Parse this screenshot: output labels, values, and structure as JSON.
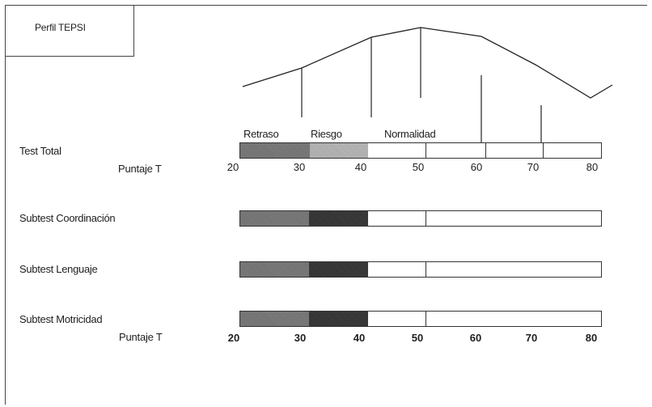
{
  "title": "Perfil TEPSI",
  "bands": {
    "retraso": "Retraso",
    "riesgo": "Riesgo",
    "normalidad": "Normalidad"
  },
  "rows": {
    "test_total": "Test Total",
    "coordinacion": "Subtest Coordinación",
    "lenguaje": "Subtest Lenguaje",
    "motricidad": "Subtest Motricidad"
  },
  "puntaje_top": "Puntaje T",
  "puntaje_bottom": "Puntaje T",
  "ticks_top": [
    "20",
    "30",
    "40",
    "50",
    "60",
    "70",
    "80"
  ],
  "ticks_bottom": [
    "20",
    "30",
    "40",
    "50",
    "60",
    "70",
    "80"
  ],
  "colors": {
    "retraso": "#757575",
    "riesgo_total": "#b0b0b0",
    "riesgo_subtest": "#373737",
    "line": "#222222"
  }
}
